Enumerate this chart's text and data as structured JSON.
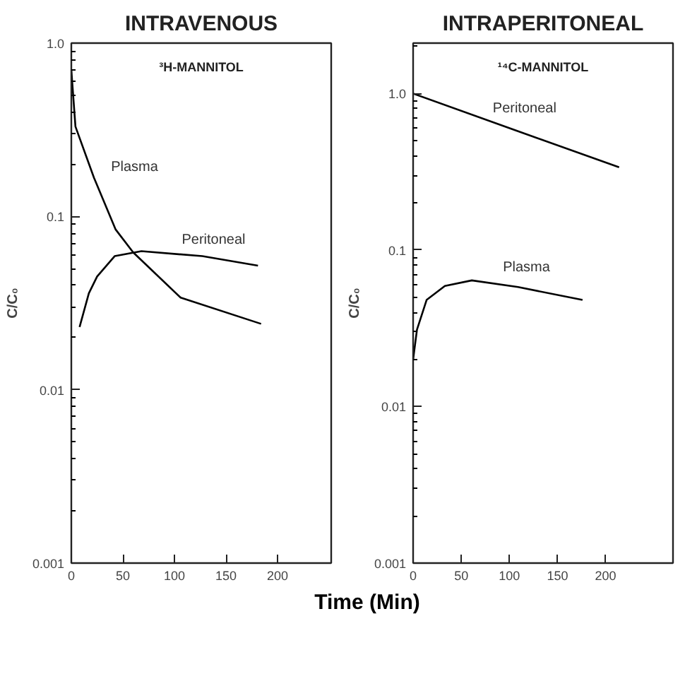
{
  "chart_data": [
    {
      "type": "line",
      "title": "INTRAVENOUS",
      "xlabel": "Time (Min)",
      "ylabel": "C/C₀",
      "log": "y",
      "grid": false,
      "marker": "none",
      "line_style": "solid",
      "annotations": [
        "³H-MANNITOL"
      ],
      "xlim": [
        0,
        252
      ],
      "xticks": [
        0,
        50,
        100,
        150,
        200
      ],
      "ylim": [
        0.001,
        1.0
      ],
      "yticks": [
        0.001,
        0.01,
        0.1,
        {
          "value": 1.0,
          "label": "1.0"
        }
      ],
      "series": [
        {
          "name": "Plasma",
          "color": "#000000",
          "x": [
            0,
            4,
            22,
            43,
            60,
            106,
            184
          ],
          "values": [
            0.7,
            0.33,
            0.167,
            0.084,
            0.062,
            0.034,
            0.024
          ]
        },
        {
          "name": "Peritoneal",
          "color": "#000000",
          "x": [
            8,
            17,
            25,
            42,
            68,
            127,
            181
          ],
          "values": [
            0.023,
            0.036,
            0.045,
            0.059,
            0.063,
            0.059,
            0.052
          ]
        }
      ]
    },
    {
      "type": "line",
      "title": "INTRAPERITONEAL",
      "ylabel": "C/C₀",
      "log": "y",
      "grid": false,
      "marker": "none",
      "line_style": "solid",
      "annotations": [
        "¹⁴C-MANNITOL"
      ],
      "xlim": [
        0,
        270
      ],
      "xticks": [
        0,
        50,
        100,
        150,
        200
      ],
      "ylim": [
        0.001,
        2.1
      ],
      "yticks": [
        0.001,
        0.01,
        0.1,
        {
          "value": 1.0,
          "label": "1.0"
        }
      ],
      "series": [
        {
          "name": "Peritoneal",
          "color": "#000000",
          "x": [
            0,
            107,
            214
          ],
          "values": [
            1.0,
            0.58,
            0.338
          ]
        },
        {
          "name": "Plasma",
          "color": "#000000",
          "x": [
            0,
            4,
            14,
            33,
            61,
            109,
            176
          ],
          "values": [
            0.02,
            0.031,
            0.048,
            0.059,
            0.064,
            0.058,
            0.048
          ]
        }
      ]
    }
  ]
}
